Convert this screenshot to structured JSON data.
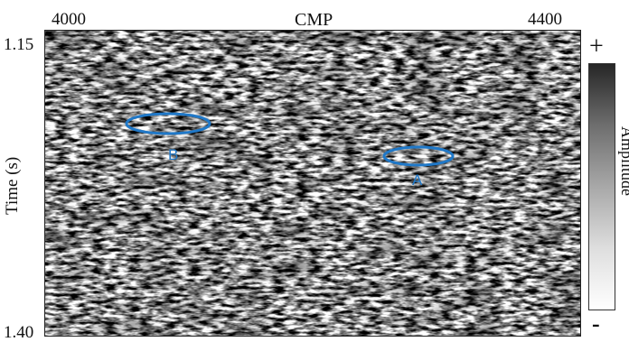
{
  "x_axis": {
    "title": "CMP",
    "start_label": "4000",
    "end_label": "4400"
  },
  "y_axis": {
    "title": "Time (s)",
    "start_label": "1.15",
    "end_label": "1.40"
  },
  "colorbar": {
    "title": "Amplitude",
    "max_label": "+",
    "min_label": "-"
  },
  "annotations": [
    {
      "label": "B",
      "color": "#1f78c8"
    },
    {
      "label": "A",
      "color": "#1f78c8"
    }
  ]
}
